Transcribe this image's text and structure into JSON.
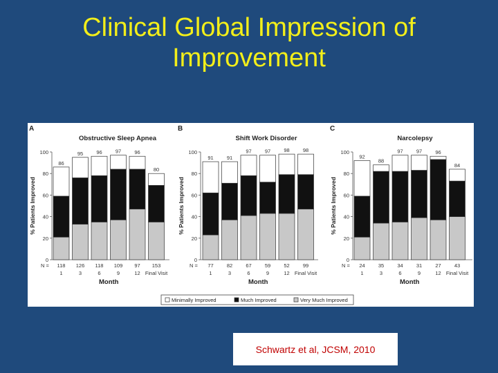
{
  "slide": {
    "title_line1": "Clinical Global Impression of",
    "title_line2": "Improvement",
    "citation": "Schwartz et al, JCSM, 2010"
  },
  "colors": {
    "background": "#1f4a7c",
    "title": "#f2ee1a",
    "citation": "#c00000",
    "minimally": "#ffffff",
    "much": "#111111",
    "very_much": "#c8c8c8"
  },
  "legend": [
    "Minimally Improved",
    "Much Improved",
    "Very Much Improved"
  ],
  "chart_data": [
    {
      "type": "bar",
      "stacked": true,
      "panel": "A",
      "title": "Obstructive Sleep Apnea",
      "xlabel": "Month",
      "ylabel": "% Patients Improved",
      "ylim": [
        0,
        100
      ],
      "yticks": [
        "0",
        "20",
        "40",
        "60",
        "80",
        "100"
      ],
      "categories": [
        "1",
        "3",
        "6",
        "9",
        "12",
        "Final Visit"
      ],
      "n_label": "N =",
      "n": [
        "118",
        "126",
        "118",
        "109",
        "97",
        "153"
      ],
      "totals": [
        "86",
        "95",
        "96",
        "97",
        "96",
        "80"
      ],
      "series": [
        {
          "name": "Very Much Improved",
          "values": [
            21,
            33,
            35,
            37,
            47,
            35
          ]
        },
        {
          "name": "Much Improved",
          "values": [
            38,
            43,
            43,
            47,
            37,
            34
          ]
        },
        {
          "name": "Minimally Improved",
          "values": [
            27,
            19,
            18,
            13,
            12,
            11
          ]
        }
      ]
    },
    {
      "type": "bar",
      "stacked": true,
      "panel": "B",
      "title": "Shift Work Disorder",
      "xlabel": "Month",
      "ylabel": "% Patients Improved",
      "ylim": [
        0,
        100
      ],
      "yticks": [
        "0",
        "20",
        "40",
        "60",
        "80",
        "100"
      ],
      "categories": [
        "1",
        "3",
        "6",
        "9",
        "12",
        "Final Visit"
      ],
      "n_label": "N =",
      "n": [
        "77",
        "82",
        "67",
        "59",
        "52",
        "99"
      ],
      "totals": [
        "91",
        "91",
        "97",
        "97",
        "98",
        "98"
      ],
      "series": [
        {
          "name": "Very Much Improved",
          "values": [
            23,
            37,
            41,
            43,
            43,
            47
          ]
        },
        {
          "name": "Much Improved",
          "values": [
            39,
            34,
            37,
            29,
            36,
            32
          ]
        },
        {
          "name": "Minimally Improved",
          "values": [
            29,
            20,
            19,
            25,
            19,
            19
          ]
        }
      ]
    },
    {
      "type": "bar",
      "stacked": true,
      "panel": "C",
      "title": "Narcolepsy",
      "xlabel": "Month",
      "ylabel": "% Patients Improved",
      "ylim": [
        0,
        100
      ],
      "yticks": [
        "0",
        "20",
        "40",
        "60",
        "80",
        "100"
      ],
      "categories": [
        "1",
        "3",
        "6",
        "9",
        "12",
        "Final Visit"
      ],
      "n_label": "N =",
      "n": [
        "24",
        "35",
        "34",
        "31",
        "27",
        "43"
      ],
      "totals": [
        "92",
        "88",
        "97",
        "97",
        "96",
        "84"
      ],
      "series": [
        {
          "name": "Very Much Improved",
          "values": [
            21,
            34,
            35,
            39,
            37,
            40
          ]
        },
        {
          "name": "Much Improved",
          "values": [
            38,
            48,
            47,
            44,
            56,
            33
          ]
        },
        {
          "name": "Minimally Improved",
          "values": [
            33,
            6,
            15,
            14,
            3,
            11
          ]
        }
      ]
    }
  ]
}
